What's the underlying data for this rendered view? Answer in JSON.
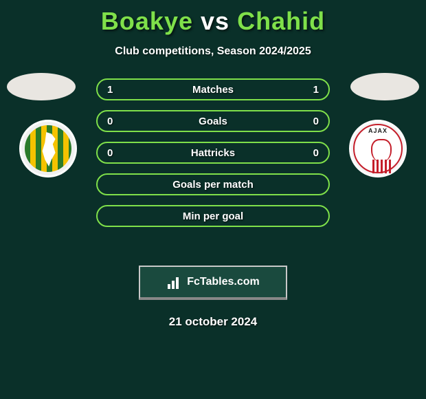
{
  "colors": {
    "background": "#0a3029",
    "accent": "#7fe04a",
    "text": "#ffffff"
  },
  "title": {
    "player1": "Boakye",
    "vs": "vs",
    "player2": "Chahid"
  },
  "subtitle": "Club competitions, Season 2024/2025",
  "left_crest": {
    "name": "ado-den-haag-crest"
  },
  "right_crest": {
    "name": "ajax-crest",
    "top_text": "AJAX"
  },
  "rows": [
    {
      "label": "Matches",
      "left": "1",
      "right": "1"
    },
    {
      "label": "Goals",
      "left": "0",
      "right": "0"
    },
    {
      "label": "Hattricks",
      "left": "0",
      "right": "0"
    },
    {
      "label": "Goals per match",
      "left": "",
      "right": ""
    },
    {
      "label": "Min per goal",
      "left": "",
      "right": ""
    }
  ],
  "brand": {
    "text": "FcTables.com"
  },
  "date": "21 october 2024"
}
